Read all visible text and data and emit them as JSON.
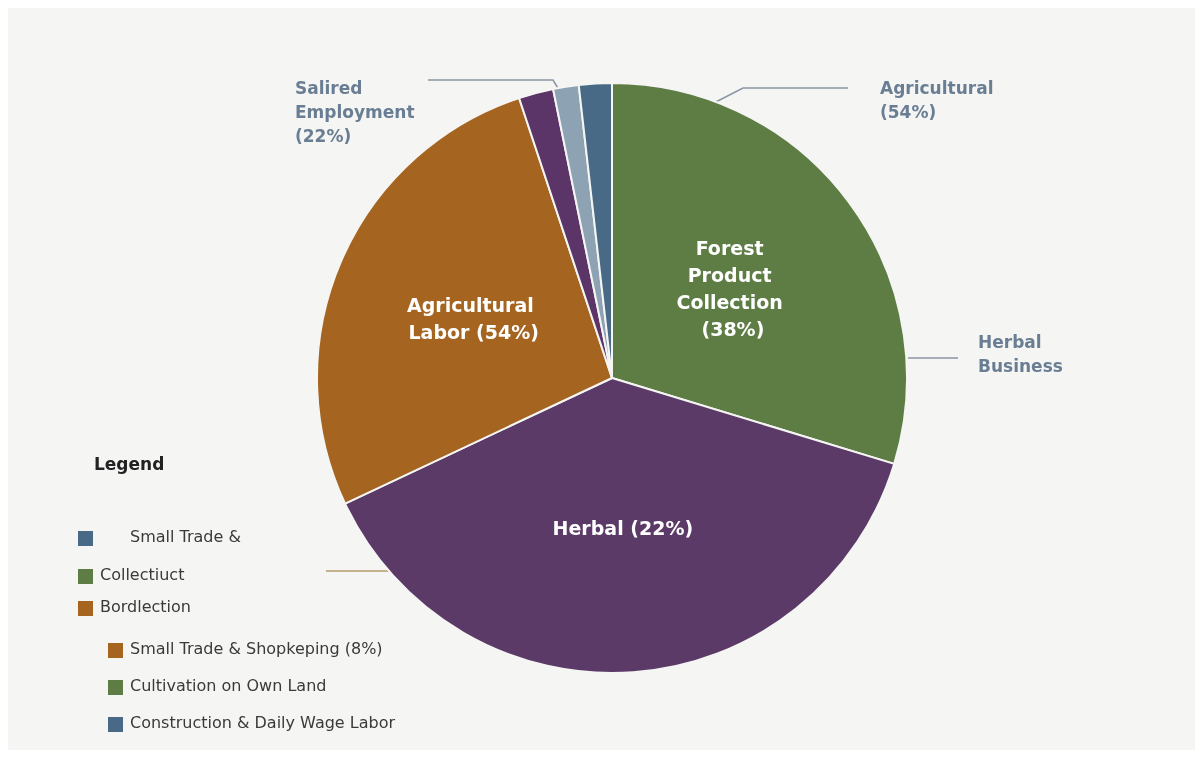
{
  "chart_data": {
    "type": "pie",
    "categories": [
      "Forest Product Collection (38%)",
      "Herbal (22%)",
      "Agricultural Labor (54%)",
      null,
      null,
      null
    ],
    "values": [
      29.7,
      38.3,
      26.9,
      1.9,
      1.4,
      1.8
    ],
    "colors": [
      "#5e7d45",
      "#5b3a68",
      "#a5641f",
      "#5b3568",
      "#8da2b2",
      "#486a86"
    ],
    "legend_title": "Legend",
    "annotations": [
      "Salired Employment (22%)",
      "Agricultural (54%)",
      "Herbal Business",
      "Small Trade &",
      "Collectiuct",
      "Bordlection",
      "Small Trade & Shopkeping (8%)",
      "Cultivation on Own Land",
      "Construction & Daily Wage Labor"
    ]
  }
}
